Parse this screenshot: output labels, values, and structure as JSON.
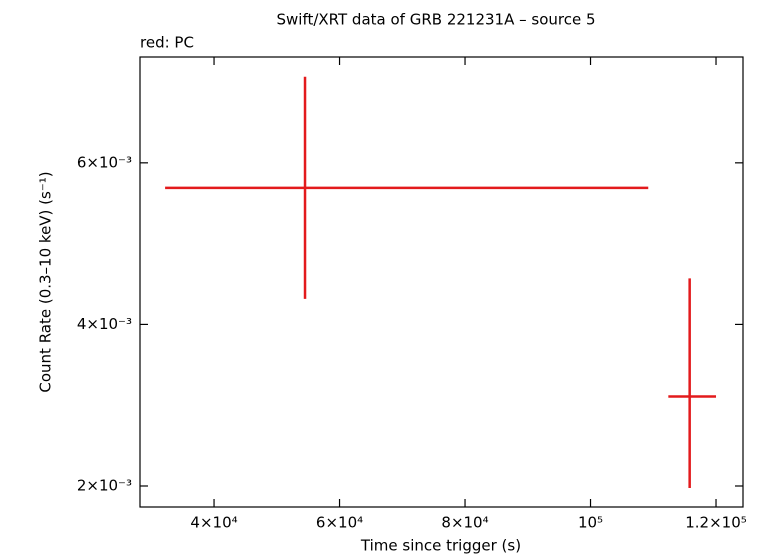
{
  "chart_data": {
    "type": "errorbar",
    "title": "Swift/XRT data of GRB 221231A – source 5",
    "subtitle": "red: PC",
    "x_label": "Time since trigger (s)",
    "y_label": "Count Rate (0.3–10 keV) (s⁻¹)",
    "xlim": [
      28200,
      124300
    ],
    "ylim": [
      0.00174,
      0.00731
    ],
    "xticks": [
      {
        "value": 40000,
        "label": "4×10⁴"
      },
      {
        "value": 60000,
        "label": "6×10⁴"
      },
      {
        "value": 80000,
        "label": "8×10⁴"
      },
      {
        "value": 100000,
        "label": "10⁵"
      },
      {
        "value": 120000,
        "label": "1.2×10⁵"
      }
    ],
    "yticks": [
      {
        "value": 0.002,
        "label": "2×10⁻³"
      },
      {
        "value": 0.004,
        "label": "4×10⁻³"
      },
      {
        "value": 0.006,
        "label": "6×10⁻³"
      }
    ],
    "series": [
      {
        "name": "PC",
        "color": "#e31a1c",
        "x": [
          54500,
          115800
        ],
        "x_err_minus": [
          22300,
          3400
        ],
        "x_err_plus": [
          54700,
          4200
        ],
        "values": [
          0.00569,
          0.003108
        ],
        "y_err_minus": [
          0.001374,
          0.001133
        ],
        "y_err_plus": [
          0.001375,
          0.001462
        ]
      }
    ]
  }
}
